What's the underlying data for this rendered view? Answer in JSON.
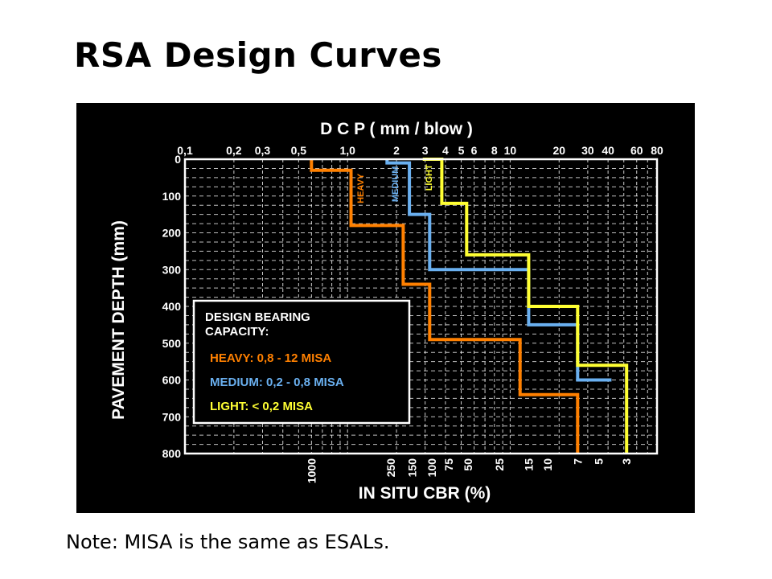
{
  "slide": {
    "title": "RSA Design Curves",
    "note": "Note: MISA is the same as ESALs."
  },
  "chart_data": {
    "type": "line",
    "title": "D C P ( mm / blow )",
    "xlabel": "IN SITU CBR (%)",
    "ylabel": "PAVEMENT DEPTH (mm)",
    "x_scale": "log",
    "xlim": [
      0.1,
      80
    ],
    "ylim": [
      0,
      800
    ],
    "y_inverted": true,
    "grid": true,
    "top_ticks": [
      {
        "v": 0.1,
        "label": "0,1"
      },
      {
        "v": 0.2,
        "label": "0,2"
      },
      {
        "v": 0.3,
        "label": "0,3"
      },
      {
        "v": 0.5,
        "label": "0,5"
      },
      {
        "v": 1,
        "label": "1,0"
      },
      {
        "v": 2,
        "label": "2"
      },
      {
        "v": 3,
        "label": "3"
      },
      {
        "v": 4,
        "label": "4"
      },
      {
        "v": 5,
        "label": "5"
      },
      {
        "v": 6,
        "label": "6"
      },
      {
        "v": 8,
        "label": "8"
      },
      {
        "v": 10,
        "label": "10"
      },
      {
        "v": 20,
        "label": "20"
      },
      {
        "v": 30,
        "label": "30"
      },
      {
        "v": 40,
        "label": "40"
      },
      {
        "v": 60,
        "label": "60"
      },
      {
        "v": 80,
        "label": "80"
      }
    ],
    "bottom_ticks": [
      {
        "v": 0.6,
        "label": "1000"
      },
      {
        "v": 1.85,
        "label": "250"
      },
      {
        "v": 2.5,
        "label": "150"
      },
      {
        "v": 3.3,
        "label": "100"
      },
      {
        "v": 4.2,
        "label": "75"
      },
      {
        "v": 5.5,
        "label": "50"
      },
      {
        "v": 8.6,
        "label": "25"
      },
      {
        "v": 13,
        "label": "15"
      },
      {
        "v": 17,
        "label": "10"
      },
      {
        "v": 26,
        "label": "7"
      },
      {
        "v": 35,
        "label": "5"
      },
      {
        "v": 52,
        "label": "3"
      }
    ],
    "y_ticks": [
      0,
      100,
      200,
      300,
      400,
      500,
      600,
      700,
      800
    ],
    "series": [
      {
        "name": "HEAVY",
        "color": "#ff8000",
        "steps": [
          [
            0.6,
            0
          ],
          [
            0.6,
            30
          ],
          [
            1.05,
            30
          ],
          [
            1.05,
            180
          ],
          [
            2.2,
            180
          ],
          [
            2.2,
            340
          ],
          [
            3.2,
            340
          ],
          [
            3.2,
            490
          ],
          [
            11.5,
            490
          ],
          [
            11.5,
            640
          ],
          [
            26,
            640
          ],
          [
            26,
            800
          ]
        ]
      },
      {
        "name": "MEDIUM",
        "color": "#6ab0f0",
        "steps": [
          [
            1.75,
            0
          ],
          [
            1.75,
            10
          ],
          [
            2.4,
            10
          ],
          [
            2.4,
            150
          ],
          [
            3.2,
            150
          ],
          [
            3.2,
            300
          ],
          [
            13,
            300
          ],
          [
            13,
            450
          ],
          [
            26,
            450
          ],
          [
            26,
            600
          ],
          [
            42,
            600
          ]
        ]
      },
      {
        "name": "LIGHT",
        "color": "#ffff33",
        "steps": [
          [
            2.9,
            0
          ],
          [
            3.8,
            0
          ],
          [
            3.8,
            120
          ],
          [
            5.4,
            120
          ],
          [
            5.4,
            260
          ],
          [
            13,
            260
          ],
          [
            13,
            400
          ],
          [
            26,
            400
          ],
          [
            26,
            560
          ],
          [
            52,
            560
          ],
          [
            52,
            800
          ]
        ]
      }
    ],
    "legend": {
      "position": "bottom-left",
      "heading_line1": "DESIGN BEARING",
      "heading_line2": "CAPACITY:",
      "items": [
        {
          "label": "HEAVY:  0,8 - 12 MISA",
          "color": "#ff8000"
        },
        {
          "label": "MEDIUM:  0,2 - 0,8 MISA",
          "color": "#6ab0f0"
        },
        {
          "label": "LIGHT:  < 0,2 MISA",
          "color": "#ffff33"
        }
      ]
    }
  }
}
